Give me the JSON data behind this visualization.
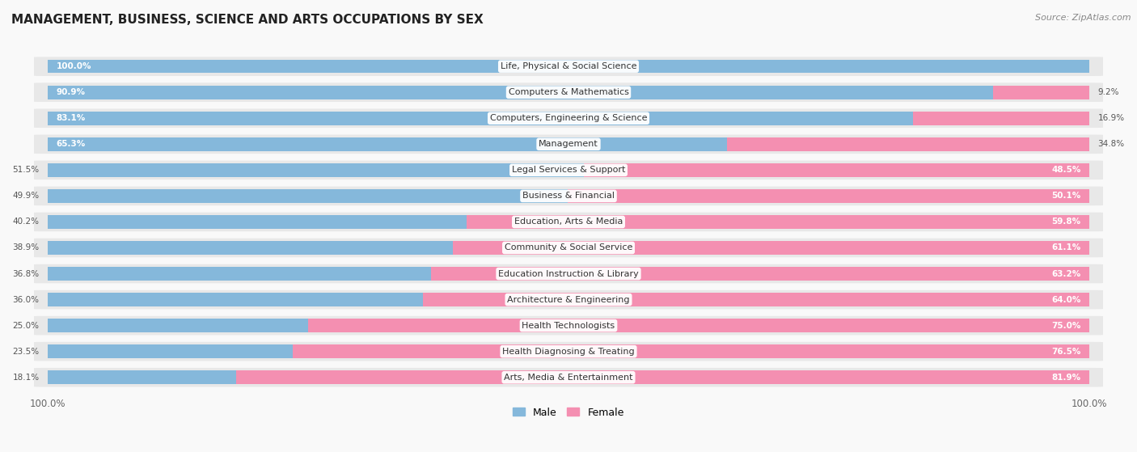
{
  "title": "MANAGEMENT, BUSINESS, SCIENCE AND ARTS OCCUPATIONS BY SEX",
  "source": "Source: ZipAtlas.com",
  "categories": [
    "Life, Physical & Social Science",
    "Computers & Mathematics",
    "Computers, Engineering & Science",
    "Management",
    "Legal Services & Support",
    "Business & Financial",
    "Education, Arts & Media",
    "Community & Social Service",
    "Education Instruction & Library",
    "Architecture & Engineering",
    "Health Technologists",
    "Health Diagnosing & Treating",
    "Arts, Media & Entertainment"
  ],
  "male": [
    100.0,
    90.9,
    83.1,
    65.3,
    51.5,
    49.9,
    40.2,
    38.9,
    36.8,
    36.0,
    25.0,
    23.5,
    18.1
  ],
  "female": [
    0.0,
    9.2,
    16.9,
    34.8,
    48.5,
    50.1,
    59.8,
    61.1,
    63.2,
    64.0,
    75.0,
    76.5,
    81.9
  ],
  "male_color": "#85b8db",
  "female_color": "#f48fb1",
  "row_bg_color": "#e8e8e8",
  "bar_label_bg": "#ffffff",
  "fig_bg_color": "#f9f9f9",
  "title_fontsize": 11,
  "label_fontsize": 8,
  "value_fontsize": 7.5,
  "legend_fontsize": 9,
  "source_fontsize": 8
}
